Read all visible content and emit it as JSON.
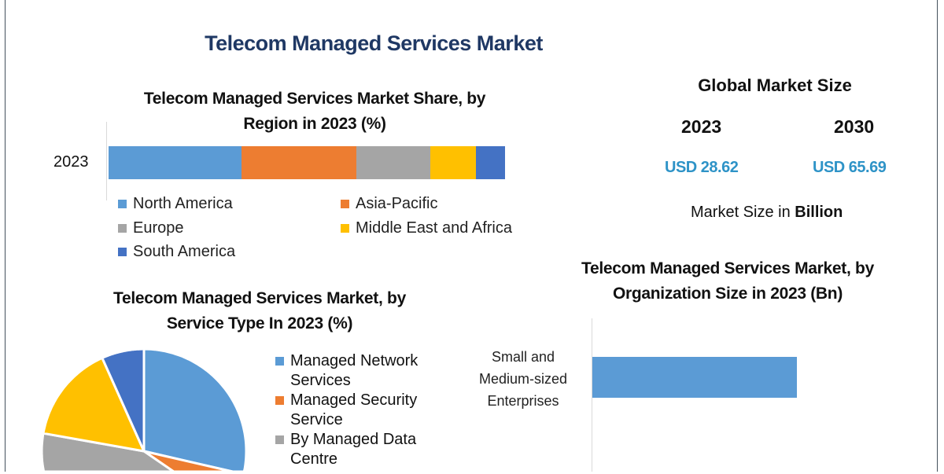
{
  "title": "Telecom Managed Services Market",
  "market_size": {
    "heading": "Global Market Size",
    "years": [
      "2023",
      "2030"
    ],
    "values": [
      "USD 28.62",
      "USD 65.69"
    ],
    "note_prefix": "Market Size in ",
    "note_bold": "Billion"
  },
  "chart_data": [
    {
      "type": "bar",
      "stacked": true,
      "orientation": "horizontal",
      "title": "Telecom Managed Services Market Share, by Region in 2023 (%)",
      "title_lines": [
        "Telecom Managed Services Market Share, by",
        "Region in 2023 (%)"
      ],
      "categories": [
        "2023"
      ],
      "series": [
        {
          "name": "North America",
          "values": [
            33.5
          ],
          "color": "#5b9bd5"
        },
        {
          "name": "Asia-Pacific",
          "values": [
            29
          ],
          "color": "#ed7d31"
        },
        {
          "name": "Europe",
          "values": [
            18.7
          ],
          "color": "#a5a5a5"
        },
        {
          "name": "Middle East and Africa",
          "values": [
            11.5
          ],
          "color": "#ffc000"
        },
        {
          "name": "South America",
          "values": [
            7.3
          ],
          "color": "#4472c4"
        }
      ],
      "legend": "bottom"
    },
    {
      "type": "pie",
      "title": "Telecom Managed Services Market, by Service Type In 2023 (%)",
      "title_lines": [
        "Telecom Managed Services Market, by",
        "Service Type In 2023 (%)"
      ],
      "slices": [
        {
          "name": "Managed Network Services",
          "legend_lines": [
            "Managed Network",
            "Services"
          ],
          "value": 33.3,
          "color": "#5b9bd5"
        },
        {
          "name": "Managed Security Service",
          "legend_lines": [
            "Managed Security",
            "Service"
          ],
          "value": 12,
          "color": "#ed7d31"
        },
        {
          "name": "By Managed Data Centre",
          "legend_lines": [
            "By Managed Data",
            "Centre"
          ],
          "value": 32.5,
          "color": "#a5a5a5"
        },
        {
          "value": 15.5,
          "color": "#ffc000"
        },
        {
          "value": 6.7,
          "color": "#4472c4"
        }
      ],
      "legend": "right"
    },
    {
      "type": "bar",
      "orientation": "horizontal",
      "title": "Telecom Managed Services Market, by Organization Size in 2023 (Bn)",
      "title_lines": [
        "Telecom Managed Services Market, by",
        "Organization Size in 2023 (Bn)"
      ],
      "categories": [
        "Small and Medium-sized Enterprises"
      ],
      "category_lines": [
        "Small and",
        "Medium-sized",
        "Enterprises"
      ],
      "color": "#5b9bd5"
    }
  ]
}
